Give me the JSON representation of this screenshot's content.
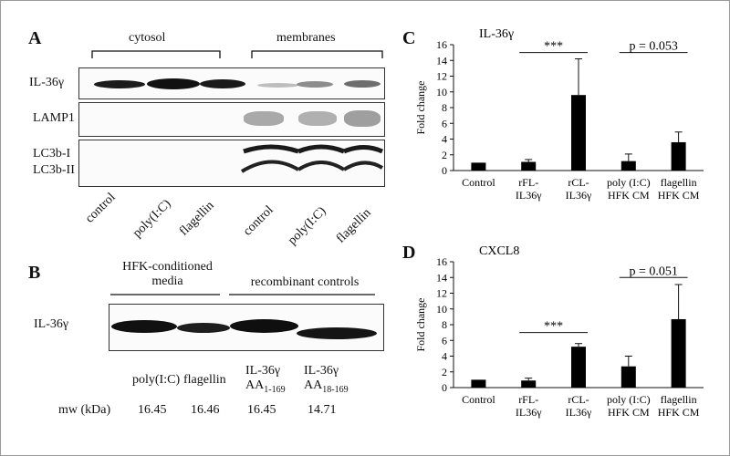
{
  "panelA": {
    "letter": "A",
    "groups": {
      "cytosol": "cytosol",
      "membranes": "membranes"
    },
    "rows": [
      "IL-36γ",
      "LAMP1",
      "LC3b-I",
      "LC3b-II"
    ],
    "lanes": [
      "control",
      "poly(I:C)",
      "flagellin",
      "control",
      "poly(I:C)",
      "flagellin"
    ]
  },
  "panelB": {
    "letter": "B",
    "group1": {
      "line1": "HFK-conditioned",
      "line2": "media"
    },
    "group2": "recombinant controls",
    "row": "IL-36γ",
    "lanes": [
      {
        "name": "poly(I:C)",
        "sub": "",
        "mw": "16.45"
      },
      {
        "name": "flagellin",
        "sub": "",
        "mw": "16.46"
      },
      {
        "name": "IL-36γ",
        "aa": "AA",
        "sub": "1-169",
        "mw": "16.45"
      },
      {
        "name": "IL-36γ",
        "aa": "AA",
        "sub": "18-169",
        "mw": "14.71"
      }
    ],
    "mw_label": "mw (kDa)"
  },
  "chart_data": [
    {
      "type": "bar",
      "letter": "C",
      "title": "IL-36γ",
      "ylabel": "Fold change",
      "categories": [
        [
          "Control"
        ],
        [
          "rFL-",
          "IL36γ"
        ],
        [
          "rCL-",
          "IL36γ"
        ],
        [
          "poly (I:C)",
          "HFK CM"
        ],
        [
          "flagellin",
          "HFK CM"
        ]
      ],
      "values": [
        1.0,
        1.1,
        9.6,
        1.2,
        3.6
      ],
      "errors": [
        0,
        0.3,
        4.6,
        0.9,
        1.3
      ],
      "ylim": [
        0,
        16
      ],
      "yticks": [
        0,
        2,
        4,
        6,
        8,
        10,
        12,
        14,
        16
      ],
      "annotations": [
        {
          "text": "***",
          "from": 1,
          "to": 2,
          "level": 15.0
        },
        {
          "text": "p = 0.053",
          "from": 3,
          "to": 4,
          "level": 15.0
        }
      ]
    },
    {
      "type": "bar",
      "letter": "D",
      "title": "CXCL8",
      "ylabel": "Fold change",
      "categories": [
        [
          "Control"
        ],
        [
          "rFL-",
          "IL36γ"
        ],
        [
          "rCL-",
          "IL36γ"
        ],
        [
          "poly (I:C)",
          "HFK CM"
        ],
        [
          "flagellin",
          "HFK CM"
        ]
      ],
      "values": [
        1.0,
        0.9,
        5.2,
        2.7,
        8.7
      ],
      "errors": [
        0,
        0.3,
        0.4,
        1.3,
        4.4
      ],
      "ylim": [
        0,
        16
      ],
      "yticks": [
        0,
        2,
        4,
        6,
        8,
        10,
        12,
        14,
        16
      ],
      "annotations": [
        {
          "text": "***",
          "from": 1,
          "to": 2,
          "level": 7.0
        },
        {
          "text": "p = 0.051",
          "from": 3,
          "to": 4,
          "level": 14.0
        }
      ]
    }
  ]
}
